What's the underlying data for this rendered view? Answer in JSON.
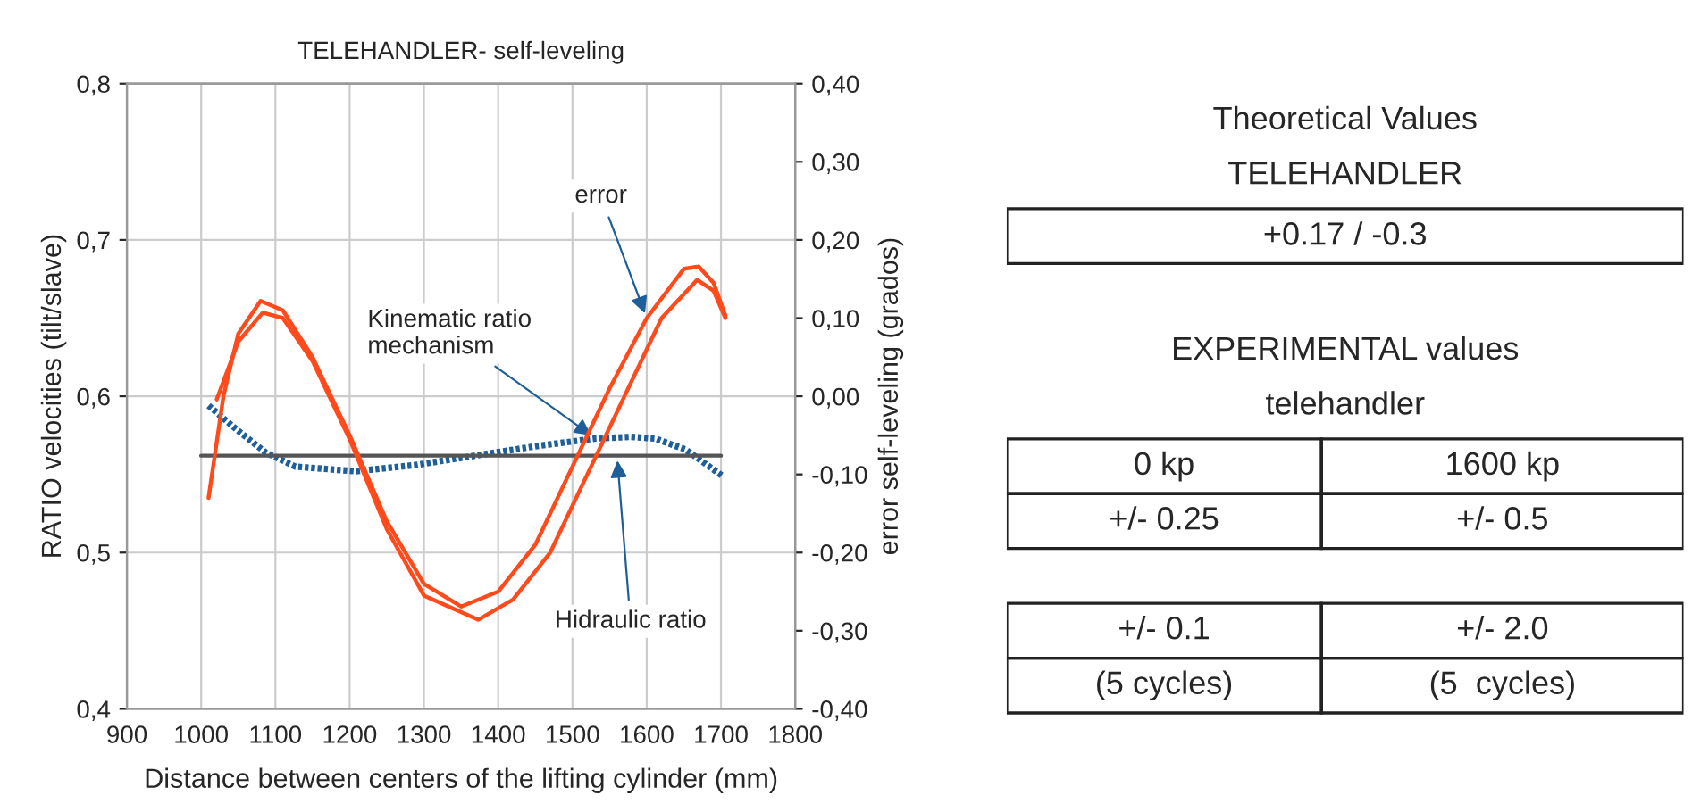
{
  "chart_data": [
    {
      "type": "line",
      "title": "TELEHANDLER- self-leveling",
      "xlabel": "Distance between centers of the lifting cylinder (mm)",
      "ylabel": "RATIO velocities (tilt/slave)",
      "y2label": "error self-leveling (grados)",
      "xlim": [
        900,
        1800
      ],
      "xticks": [
        900,
        1000,
        1100,
        1200,
        1300,
        1400,
        1500,
        1600,
        1700,
        1800
      ],
      "ylim": [
        0.4,
        0.8
      ],
      "yticks": [
        {
          "value": 0.4,
          "label": "0,4"
        },
        {
          "value": 0.5,
          "label": "0,5"
        },
        {
          "value": 0.6,
          "label": "0,6"
        },
        {
          "value": 0.7,
          "label": "0,7"
        },
        {
          "value": 0.8,
          "label": "0,8"
        }
      ],
      "y2lim": [
        -0.4,
        0.4
      ],
      "y2ticks": [
        {
          "value": -0.4,
          "label": "-0,40"
        },
        {
          "value": -0.3,
          "label": "-0,30"
        },
        {
          "value": -0.2,
          "label": "-0,20"
        },
        {
          "value": -0.1,
          "label": "-0,10"
        },
        {
          "value": 0.0,
          "label": "0,00"
        },
        {
          "value": 0.1,
          "label": "0,10"
        },
        {
          "value": 0.2,
          "label": "0,20"
        },
        {
          "value": 0.3,
          "label": "0,30"
        },
        {
          "value": 0.4,
          "label": "0,40"
        }
      ],
      "grid": true,
      "legend": false,
      "series": [
        {
          "name": "Kinematic ratio\nmechanism",
          "color": "#1f5f99",
          "line_style": "dotted",
          "x": [
            1010,
            1047,
            1087,
            1127,
            1208,
            1289,
            1369,
            1450,
            1531,
            1579,
            1611,
            1652,
            1702
          ],
          "values": [
            0.594,
            0.579,
            0.564,
            0.555,
            0.552,
            0.556,
            0.562,
            0.568,
            0.573,
            0.574,
            0.573,
            0.566,
            0.549
          ]
        },
        {
          "name": "Hidraulic ratio",
          "color": "#555555",
          "x": [
            1000,
            1700
          ],
          "values": [
            0.562,
            0.562
          ]
        },
        {
          "name": "error",
          "color": "#ff4a1c",
          "axis": "y2",
          "x": [
            1010,
            1030,
            1050,
            1080,
            1110,
            1150,
            1200,
            1250,
            1300,
            1350,
            1400,
            1450,
            1500,
            1550,
            1600,
            1650,
            1670,
            1690,
            1706
          ],
          "values": [
            -0.13,
            0.0,
            0.08,
            0.122,
            0.11,
            0.05,
            -0.05,
            -0.16,
            -0.24,
            -0.269,
            -0.25,
            -0.19,
            -0.09,
            0.01,
            0.1,
            0.163,
            0.166,
            0.145,
            0.103
          ]
        },
        {
          "color": "#ff4a1c",
          "axis": "y2",
          "x": [
            1021,
            1050,
            1083,
            1110,
            1150,
            1200,
            1250,
            1300,
            1373,
            1420,
            1470,
            1520,
            1570,
            1620,
            1668,
            1690,
            1706
          ],
          "values": [
            -0.004,
            0.07,
            0.107,
            0.1,
            0.045,
            -0.055,
            -0.17,
            -0.255,
            -0.286,
            -0.26,
            -0.2,
            -0.1,
            0.0,
            0.1,
            0.149,
            0.135,
            0.1
          ]
        }
      ]
    },
    {
      "type": "other",
      "annotations": [
        "Theoretical Values",
        "TELEHANDLER",
        "+0.17 / -0.3",
        "EXPERIMENTAL values",
        "telehandler",
        "0 kp",
        "1600 kp",
        "+/- 0.25",
        "+/- 0.5",
        "+/- 0.1",
        "+/- 2.0",
        "(5 cycles)",
        "(5  cycles)"
      ]
    }
  ]
}
